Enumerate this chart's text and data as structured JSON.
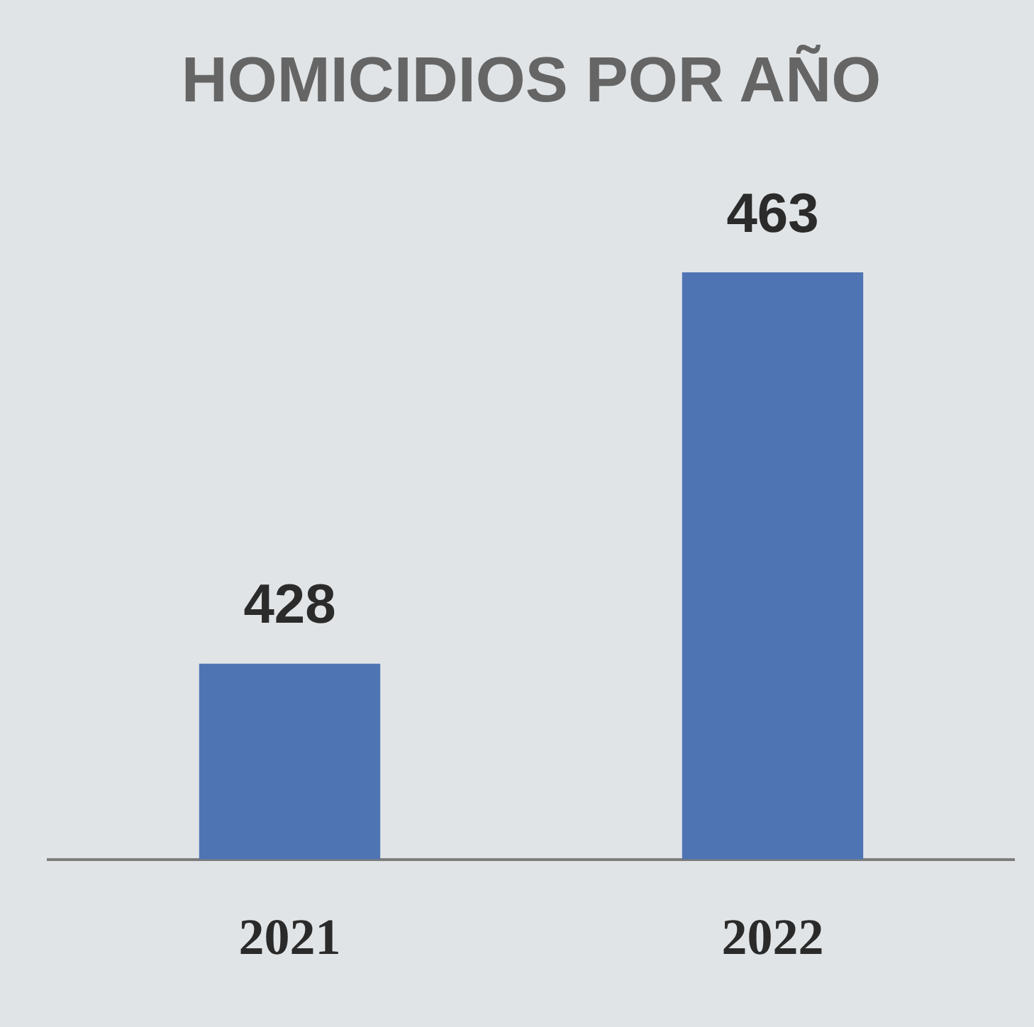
{
  "chart_data": {
    "type": "bar",
    "title": "HOMICIDIOS POR AÑO",
    "categories": [
      "2021",
      "2022"
    ],
    "values": [
      428,
      463
    ],
    "color": "#4f74b4",
    "tick_labels": "x",
    "data_labels": true,
    "grid": false
  }
}
